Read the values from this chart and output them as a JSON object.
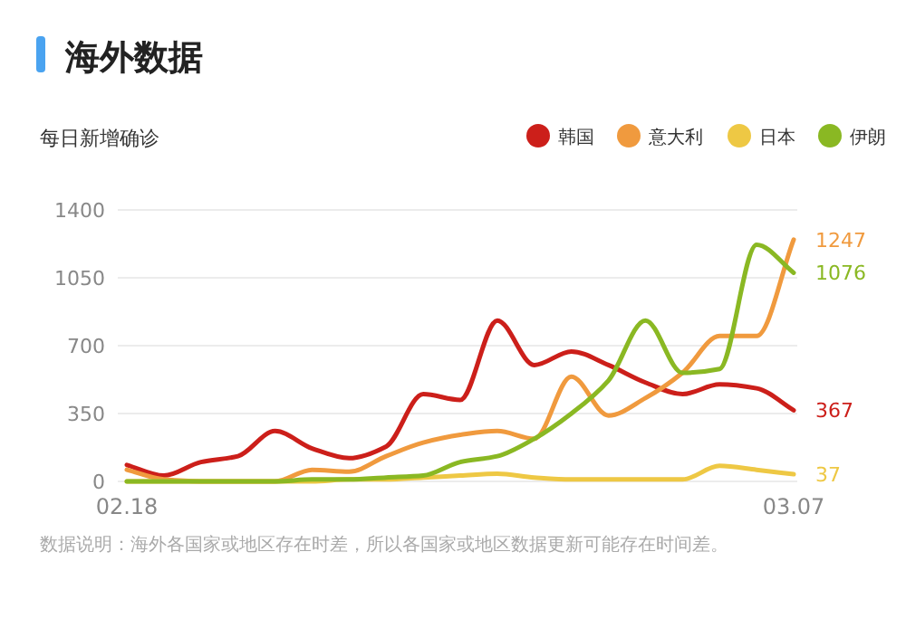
{
  "chart_data": {
    "type": "line",
    "title": "海外数据",
    "subtitle": "每日新增确诊",
    "categories": [
      "02.18",
      null,
      null,
      null,
      null,
      null,
      null,
      null,
      null,
      null,
      null,
      null,
      null,
      null,
      null,
      null,
      null,
      null,
      "03.07"
    ],
    "series": [
      {
        "name": "韩国",
        "color": "#cc1f1a",
        "values": [
          85,
          30,
          100,
          130,
          260,
          170,
          120,
          180,
          450,
          420,
          830,
          600,
          670,
          600,
          510,
          450,
          500,
          480,
          367
        ],
        "value_labels": [
          null,
          null,
          null,
          null,
          null,
          null,
          null,
          null,
          null,
          null,
          null,
          null,
          null,
          null,
          null,
          null,
          null,
          null,
          "367"
        ]
      },
      {
        "name": "意大利",
        "color": "#f09a3e",
        "values": [
          60,
          10,
          0,
          0,
          0,
          60,
          50,
          130,
          200,
          240,
          260,
          220,
          540,
          340,
          430,
          560,
          750,
          750,
          1247
        ],
        "value_labels": [
          null,
          null,
          null,
          null,
          null,
          null,
          null,
          null,
          null,
          null,
          null,
          null,
          null,
          null,
          null,
          null,
          null,
          null,
          "1247"
        ]
      },
      {
        "name": "日本",
        "color": "#eec844",
        "values": [
          0,
          0,
          0,
          0,
          0,
          0,
          10,
          10,
          20,
          30,
          40,
          20,
          10,
          10,
          10,
          10,
          80,
          60,
          37
        ],
        "value_labels": [
          null,
          null,
          null,
          null,
          null,
          null,
          null,
          null,
          null,
          null,
          null,
          null,
          null,
          null,
          null,
          null,
          null,
          null,
          "37"
        ]
      },
      {
        "name": "伊朗",
        "color": "#8ab823",
        "values": [
          0,
          0,
          0,
          0,
          0,
          10,
          10,
          20,
          30,
          100,
          130,
          220,
          350,
          520,
          830,
          560,
          580,
          1220,
          1076
        ],
        "value_labels": [
          null,
          null,
          null,
          null,
          null,
          null,
          null,
          null,
          null,
          null,
          null,
          null,
          null,
          null,
          null,
          null,
          null,
          null,
          "1076"
        ]
      }
    ],
    "ylim": [
      0,
      1400
    ],
    "yticks": [
      0,
      350,
      700,
      1050,
      1400
    ],
    "grid": "y",
    "legend": "top right",
    "marker": "none",
    "line_style": "solid",
    "annotations": [
      "数据说明：海外各国家或地区存在时差，所以各国家或地区数据更新可能存在时间差。"
    ]
  }
}
